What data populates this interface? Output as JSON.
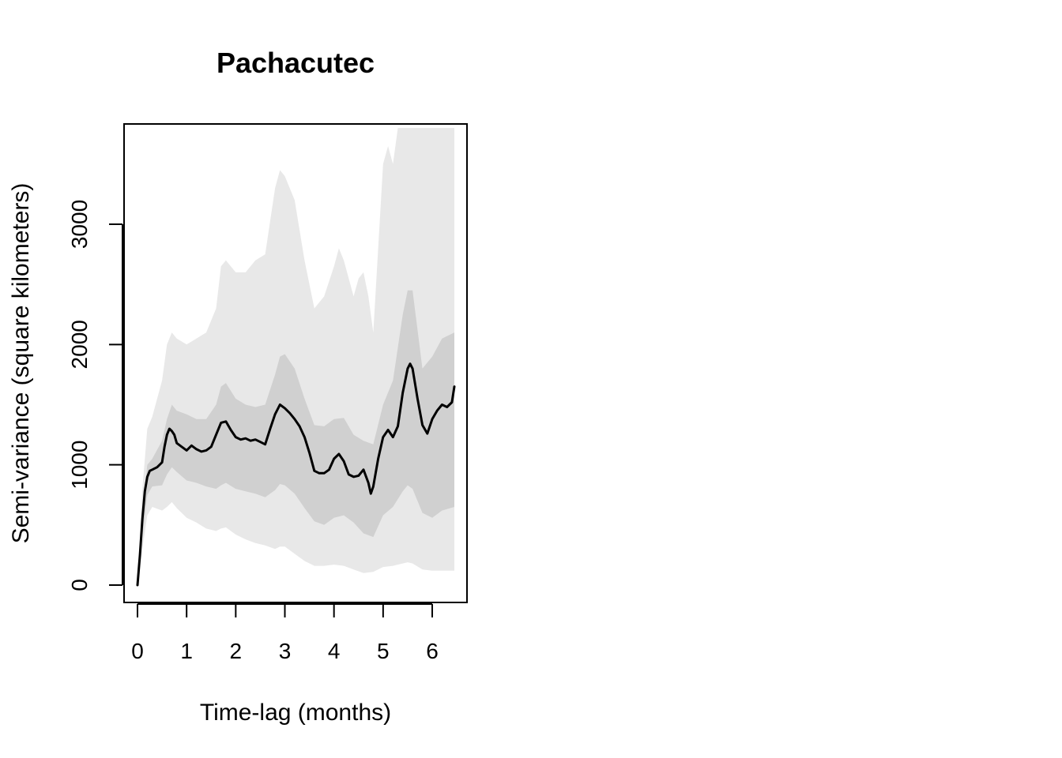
{
  "chart_data": {
    "type": "line",
    "title": "Pachacutec",
    "xlabel": "Time-lag (months)",
    "ylabel": "Semi-variance (square kilometers)",
    "xlim": [
      0,
      6.45
    ],
    "ylim": [
      0,
      3800
    ],
    "x_ticks": [
      0,
      1,
      2,
      3,
      4,
      5,
      6
    ],
    "y_ticks": [
      0,
      1000,
      2000,
      3000
    ],
    "grid": false,
    "legend": "none",
    "colors": {
      "line": "#000000",
      "outer_band": "#e8e8e8",
      "inner_band": "#d0d0d0",
      "axis": "#000000"
    },
    "series": [
      {
        "role": "estimate",
        "x": [
          0,
          0.05,
          0.1,
          0.15,
          0.2,
          0.25,
          0.3,
          0.4,
          0.5,
          0.55,
          0.6,
          0.65,
          0.7,
          0.75,
          0.8,
          0.9,
          1.0,
          1.1,
          1.2,
          1.3,
          1.4,
          1.5,
          1.6,
          1.7,
          1.8,
          1.9,
          2.0,
          2.1,
          2.2,
          2.3,
          2.4,
          2.5,
          2.6,
          2.7,
          2.8,
          2.9,
          3.0,
          3.1,
          3.2,
          3.3,
          3.4,
          3.5,
          3.6,
          3.7,
          3.8,
          3.9,
          4.0,
          4.1,
          4.2,
          4.3,
          4.4,
          4.5,
          4.6,
          4.7,
          4.75,
          4.8,
          4.9,
          5.0,
          5.1,
          5.2,
          5.3,
          5.4,
          5.5,
          5.55,
          5.6,
          5.7,
          5.8,
          5.9,
          6.0,
          6.1,
          6.2,
          6.3,
          6.4,
          6.45
        ],
        "y": [
          0,
          250,
          550,
          780,
          900,
          950,
          960,
          980,
          1020,
          1150,
          1250,
          1300,
          1280,
          1250,
          1180,
          1150,
          1120,
          1160,
          1130,
          1110,
          1120,
          1150,
          1250,
          1350,
          1360,
          1290,
          1230,
          1210,
          1220,
          1200,
          1210,
          1190,
          1170,
          1300,
          1420,
          1500,
          1470,
          1430,
          1380,
          1320,
          1230,
          1100,
          950,
          930,
          930,
          960,
          1050,
          1090,
          1030,
          920,
          900,
          910,
          960,
          850,
          760,
          820,
          1050,
          1230,
          1290,
          1230,
          1320,
          1600,
          1800,
          1840,
          1800,
          1550,
          1330,
          1260,
          1380,
          1450,
          1500,
          1480,
          1520,
          1650
        ]
      },
      {
        "role": "inner_band_upper",
        "x": [
          0,
          0.1,
          0.2,
          0.3,
          0.5,
          0.6,
          0.7,
          0.8,
          1.0,
          1.2,
          1.4,
          1.6,
          1.7,
          1.8,
          2.0,
          2.2,
          2.4,
          2.6,
          2.8,
          2.9,
          3.0,
          3.2,
          3.4,
          3.6,
          3.8,
          4.0,
          4.2,
          4.4,
          4.6,
          4.8,
          5.0,
          5.2,
          5.4,
          5.5,
          5.6,
          5.8,
          6.0,
          6.2,
          6.45
        ],
        "y": [
          0,
          600,
          1000,
          1050,
          1200,
          1380,
          1500,
          1450,
          1420,
          1380,
          1380,
          1500,
          1650,
          1680,
          1550,
          1500,
          1480,
          1500,
          1750,
          1900,
          1920,
          1800,
          1550,
          1330,
          1320,
          1380,
          1390,
          1250,
          1200,
          1170,
          1500,
          1700,
          2250,
          2450,
          2450,
          1800,
          1900,
          2050,
          2100
        ]
      },
      {
        "role": "inner_band_lower",
        "x": [
          0,
          0.1,
          0.2,
          0.3,
          0.5,
          0.6,
          0.7,
          0.8,
          1.0,
          1.2,
          1.4,
          1.6,
          1.7,
          1.8,
          2.0,
          2.2,
          2.4,
          2.6,
          2.8,
          2.9,
          3.0,
          3.2,
          3.4,
          3.6,
          3.8,
          4.0,
          4.2,
          4.4,
          4.6,
          4.8,
          5.0,
          5.2,
          5.4,
          5.5,
          5.6,
          5.8,
          6.0,
          6.2,
          6.45
        ],
        "y": [
          0,
          400,
          750,
          820,
          830,
          920,
          980,
          940,
          870,
          850,
          820,
          800,
          830,
          850,
          800,
          780,
          760,
          730,
          790,
          840,
          830,
          760,
          640,
          530,
          500,
          560,
          580,
          520,
          430,
          400,
          580,
          650,
          780,
          830,
          800,
          600,
          560,
          620,
          650
        ]
      },
      {
        "role": "outer_band_upper",
        "x": [
          0,
          0.1,
          0.2,
          0.3,
          0.5,
          0.6,
          0.7,
          0.8,
          1.0,
          1.2,
          1.4,
          1.6,
          1.7,
          1.8,
          2.0,
          2.2,
          2.4,
          2.6,
          2.8,
          2.9,
          3.0,
          3.2,
          3.4,
          3.6,
          3.8,
          4.0,
          4.1,
          4.2,
          4.4,
          4.5,
          4.6,
          4.7,
          4.8,
          4.9,
          5.0,
          5.1,
          5.2,
          5.3,
          5.4,
          5.6,
          6.0,
          6.2,
          6.45
        ],
        "y": [
          0,
          800,
          1300,
          1400,
          1700,
          2000,
          2100,
          2050,
          2000,
          2050,
          2100,
          2300,
          2650,
          2700,
          2600,
          2600,
          2700,
          2750,
          3300,
          3450,
          3400,
          3200,
          2700,
          2300,
          2400,
          2650,
          2800,
          2700,
          2400,
          2550,
          2600,
          2400,
          2100,
          2800,
          3500,
          3650,
          3500,
          3800,
          3800,
          3800,
          3800,
          3800,
          3800
        ]
      },
      {
        "role": "outer_band_lower",
        "x": [
          0,
          0.1,
          0.2,
          0.3,
          0.5,
          0.6,
          0.7,
          0.8,
          1.0,
          1.2,
          1.4,
          1.6,
          1.7,
          1.8,
          2.0,
          2.2,
          2.4,
          2.6,
          2.8,
          2.9,
          3.0,
          3.2,
          3.4,
          3.6,
          3.8,
          4.0,
          4.2,
          4.4,
          4.6,
          4.8,
          5.0,
          5.2,
          5.4,
          5.5,
          5.6,
          5.8,
          6.0,
          6.2,
          6.45
        ],
        "y": [
          0,
          300,
          580,
          650,
          620,
          650,
          690,
          640,
          560,
          520,
          470,
          450,
          470,
          480,
          420,
          380,
          350,
          330,
          300,
          320,
          320,
          260,
          200,
          160,
          160,
          170,
          160,
          130,
          100,
          110,
          150,
          160,
          180,
          190,
          180,
          130,
          120,
          120,
          120
        ]
      }
    ]
  }
}
